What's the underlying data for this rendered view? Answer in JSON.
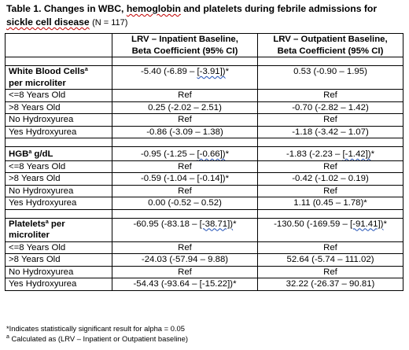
{
  "title": {
    "line1": "Table 1. Changes in WBC, ",
    "line1_word": "hemoglobin",
    "line1_rest": " and platelets during febrile admissions for",
    "line2": "sickle cell disease",
    "n": "(N = 117)"
  },
  "headers": {
    "col1": [
      "LRV – Inpatient Baseline,",
      "Beta Coefficient (95% CI)"
    ],
    "col2": [
      "LRV – Outpatient Baseline,",
      "Beta Coefficient (95% CI)"
    ]
  },
  "sections": [
    {
      "label_lines": [
        "White Blood Cells",
        "per microliter"
      ],
      "sup": "a",
      "v1": "-5.40 (-6.89 – ",
      "v1_mark": "[-3.91])",
      "v1_star": "*",
      "v2": "0.53 (-0.90 – 1.95)",
      "v2_mark": "",
      "v2_star": "",
      "rows": [
        {
          "label": "<=8 Years Old",
          "v1": "Ref",
          "v2": "Ref"
        },
        {
          "label": ">8 Years Old",
          "v1": "0.25 (-2.02 – 2.51)",
          "v2": "-0.70 (-2.82 – 1.42)"
        },
        {
          "label": "No Hydroxyurea",
          "v1": "Ref",
          "v2": "Ref"
        },
        {
          "label": "Yes Hydroxyurea",
          "v1": "-0.86 (-3.09 – 1.38)",
          "v2": "-1.18 (-3.42 – 1.07)"
        }
      ]
    },
    {
      "label_lines": [
        "HGB",
        " g/dL"
      ],
      "sup": "a",
      "v1": "-0.95 (-1.25 – ",
      "v1_mark": "[-0.66])",
      "v1_star": "*",
      "v2": "-1.83 (-2.23 – ",
      "v2_mark": "[-1.42])",
      "v2_star": "*",
      "rows": [
        {
          "label": "<=8 Years Old",
          "v1": "Ref",
          "v2": "Ref"
        },
        {
          "label": ">8 Years Old",
          "v1": "-0.59 (-1.04 – [-0.14])*",
          "v2": "-0.42 (-1.02 – 0.19)"
        },
        {
          "label": "No Hydroxyurea",
          "v1": "Ref",
          "v2": "Ref"
        },
        {
          "label": "Yes Hydroxyurea",
          "v1": "0.00 (-0.52 – 0.52)",
          "v2": "1.11 (0.45 – 1.78)*"
        }
      ]
    },
    {
      "label_lines": [
        "Platelets",
        " per",
        "microliter"
      ],
      "sup": "a",
      "v1": "-60.95 (-83.18 – ",
      "v1_mark": "[-38.71])",
      "v1_star": "*",
      "v2": "-130.50 (-169.59 – ",
      "v2_mark": "[-91.41])",
      "v2_star": "*",
      "rows": [
        {
          "label": "<=8 Years Old",
          "v1": "Ref",
          "v2": "Ref"
        },
        {
          "label": ">8 Years Old",
          "v1": "-24.03 (-57.94 – 9.88)",
          "v2": "52.64 (-5.74 – 111.02)"
        },
        {
          "label": "No Hydroxyurea",
          "v1": "Ref",
          "v2": "Ref"
        },
        {
          "label": "Yes Hydroxyurea",
          "v1": "-54.43 (-93.64 – [-15.22])*",
          "v2": "32.22 (-26.37 – 90.81)"
        }
      ]
    }
  ],
  "notes": {
    "line1": "*Indicates statistically significant result for alpha = 0.05",
    "line2_sup": "a",
    "line2": " Calculated as (LRV – Inpatient or Outpatient baseline)"
  }
}
